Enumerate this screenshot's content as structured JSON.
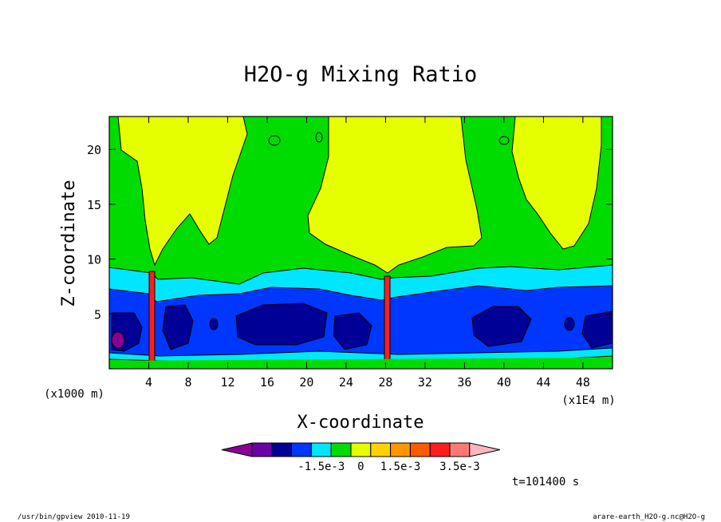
{
  "chart_data": {
    "type": "heatmap",
    "title": "H2O-g Mixing Ratio",
    "xlabel": "X-coordinate",
    "ylabel": "Z-coordinate",
    "x_unit_left": "(x1000 m)",
    "x_unit_right": "(x1E4 m)",
    "xlim": [
      0,
      51
    ],
    "ylim": [
      0,
      23
    ],
    "x_ticks": [
      "4",
      "8",
      "12",
      "16",
      "20",
      "24",
      "28",
      "32",
      "36",
      "40",
      "44",
      "48"
    ],
    "y_ticks": [
      "5",
      "10",
      "15",
      "20"
    ],
    "time_label": "t=101400 s",
    "colorbar": {
      "colors": [
        "#8b0094",
        "#6b00a8",
        "#000096",
        "#0037ff",
        "#00e6ff",
        "#00dc00",
        "#e6ff00",
        "#ffd200",
        "#ff9600",
        "#ff5a00",
        "#ff1e1e",
        "#ff7878",
        "#ffb6c1"
      ],
      "labels": [
        "-1.5e-3",
        "0",
        "1.5e-3",
        "3.5e-3"
      ]
    },
    "fields": [
      {
        "region": "background",
        "color": "#00dc00"
      },
      {
        "region": "upper-moist-plumes",
        "color": "#e6ff00"
      },
      {
        "region": "mid-layer",
        "color": "#00e6ff"
      },
      {
        "region": "lower-layer",
        "color": "#0037ff"
      },
      {
        "region": "core",
        "color": "#000096"
      },
      {
        "region": "minimum",
        "color": "#8b0094"
      },
      {
        "region": "updraft-columns",
        "color": "#ff1e1e"
      }
    ]
  },
  "footer": {
    "left": "/usr/bin/gpview  2010-11-19",
    "right": "arare-earth_H2O-g.nc@H2O-g"
  }
}
